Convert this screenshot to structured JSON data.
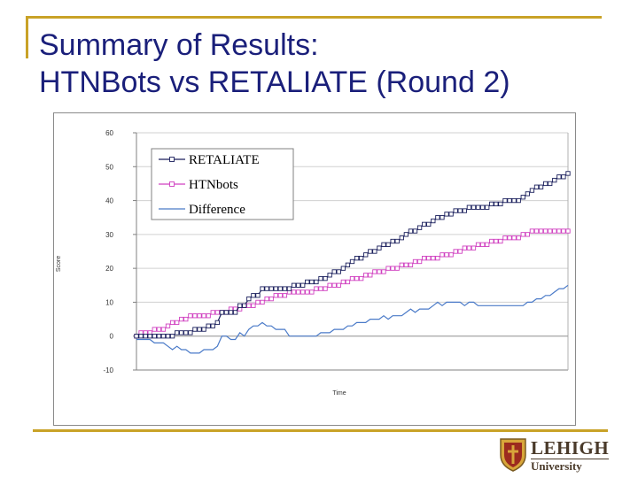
{
  "slide": {
    "title_line1": "Summary of Results:",
    "title_line2": "HTNBots vs RETALIATE (Round 2)"
  },
  "logo": {
    "name": "LEHIGH",
    "sub": "University",
    "colors": {
      "shield_gold": "#d8a63a",
      "shield_red": "#9c2b1f",
      "text": "#4a3a2a"
    }
  },
  "theme": {
    "title_color": "#1a1f7a",
    "rule_color": "#c9a227"
  },
  "chart_data": {
    "type": "line",
    "title": "",
    "xlabel": "Time",
    "ylabel": "Score",
    "ylim": [
      -10,
      60
    ],
    "yticks": [
      60,
      50,
      40,
      30,
      20,
      10,
      0,
      -10
    ],
    "ytick_labels": [
      "60",
      "50",
      "40",
      "30",
      "20",
      "10",
      "0",
      "-10"
    ],
    "grid": true,
    "legend_position": "top-left",
    "x": [
      0,
      1,
      2,
      3,
      4,
      5,
      6,
      7,
      8,
      9,
      10,
      11,
      12,
      13,
      14,
      15,
      16,
      17,
      18,
      19,
      20,
      21,
      22,
      23,
      24,
      25,
      26,
      27,
      28,
      29,
      30,
      31,
      32,
      33,
      34,
      35,
      36,
      37,
      38,
      39,
      40,
      41,
      42,
      43,
      44,
      45,
      46,
      47,
      48,
      49,
      50,
      51,
      52,
      53,
      54,
      55,
      56,
      57,
      58,
      59,
      60,
      61,
      62,
      63,
      64,
      65,
      66,
      67,
      68,
      69,
      70,
      71,
      72,
      73,
      74,
      75,
      76,
      77,
      78,
      79,
      80,
      81,
      82,
      83,
      84,
      85,
      86,
      87,
      88,
      89,
      90,
      91,
      92,
      93,
      94,
      95,
      96
    ],
    "series": [
      {
        "name": "RETALIATE",
        "color": "#1a1f5c",
        "marker": "square",
        "values": [
          0,
          0,
          0,
          0,
          0,
          0,
          0,
          0,
          0,
          1,
          1,
          1,
          1,
          2,
          2,
          2,
          3,
          3,
          4,
          7,
          7,
          7,
          7,
          9,
          9,
          11,
          12,
          12,
          14,
          14,
          14,
          14,
          14,
          14,
          14,
          15,
          15,
          15,
          16,
          16,
          16,
          17,
          17,
          18,
          19,
          19,
          20,
          21,
          22,
          23,
          23,
          24,
          25,
          25,
          26,
          27,
          27,
          28,
          28,
          29,
          30,
          31,
          31,
          32,
          33,
          33,
          34,
          35,
          35,
          36,
          36,
          37,
          37,
          37,
          38,
          38,
          38,
          38,
          38,
          39,
          39,
          39,
          40,
          40,
          40,
          40,
          41,
          42,
          43,
          44,
          44,
          45,
          45,
          46,
          47,
          47,
          48
        ]
      },
      {
        "name": "HTNbots",
        "color": "#d040c0",
        "marker": "square",
        "values": [
          0,
          1,
          1,
          1,
          2,
          2,
          2,
          3,
          4,
          4,
          5,
          5,
          6,
          6,
          6,
          6,
          6,
          7,
          7,
          7,
          7,
          8,
          8,
          8,
          9,
          9,
          9,
          10,
          10,
          11,
          11,
          12,
          12,
          12,
          13,
          13,
          13,
          13,
          13,
          13,
          14,
          14,
          14,
          15,
          15,
          15,
          16,
          16,
          17,
          17,
          17,
          18,
          18,
          19,
          19,
          19,
          20,
          20,
          20,
          21,
          21,
          21,
          22,
          22,
          23,
          23,
          23,
          23,
          24,
          24,
          24,
          25,
          25,
          26,
          26,
          26,
          27,
          27,
          27,
          28,
          28,
          28,
          29,
          29,
          29,
          29,
          30,
          30,
          31,
          31,
          31,
          31,
          31,
          31,
          31,
          31,
          31
        ]
      },
      {
        "name": "Difference",
        "color": "#4a7ac8",
        "marker": "none",
        "values": [
          -1,
          -1,
          -1,
          -1,
          -2,
          -2,
          -2,
          -3,
          -4,
          -3,
          -4,
          -4,
          -5,
          -5,
          -5,
          -4,
          -4,
          -4,
          -3,
          0,
          0,
          -1,
          -1,
          1,
          0,
          2,
          3,
          3,
          4,
          3,
          3,
          2,
          2,
          2,
          0,
          0,
          0,
          0,
          0,
          0,
          0,
          1,
          1,
          1,
          2,
          2,
          2,
          3,
          3,
          4,
          4,
          4,
          5,
          5,
          5,
          6,
          5,
          6,
          6,
          6,
          7,
          8,
          7,
          8,
          8,
          8,
          9,
          10,
          9,
          10,
          10,
          10,
          10,
          9,
          10,
          10,
          9,
          9,
          9,
          9,
          9,
          9,
          9,
          9,
          9,
          9,
          9,
          10,
          10,
          11,
          11,
          12,
          12,
          13,
          14,
          14,
          15
        ]
      }
    ]
  }
}
